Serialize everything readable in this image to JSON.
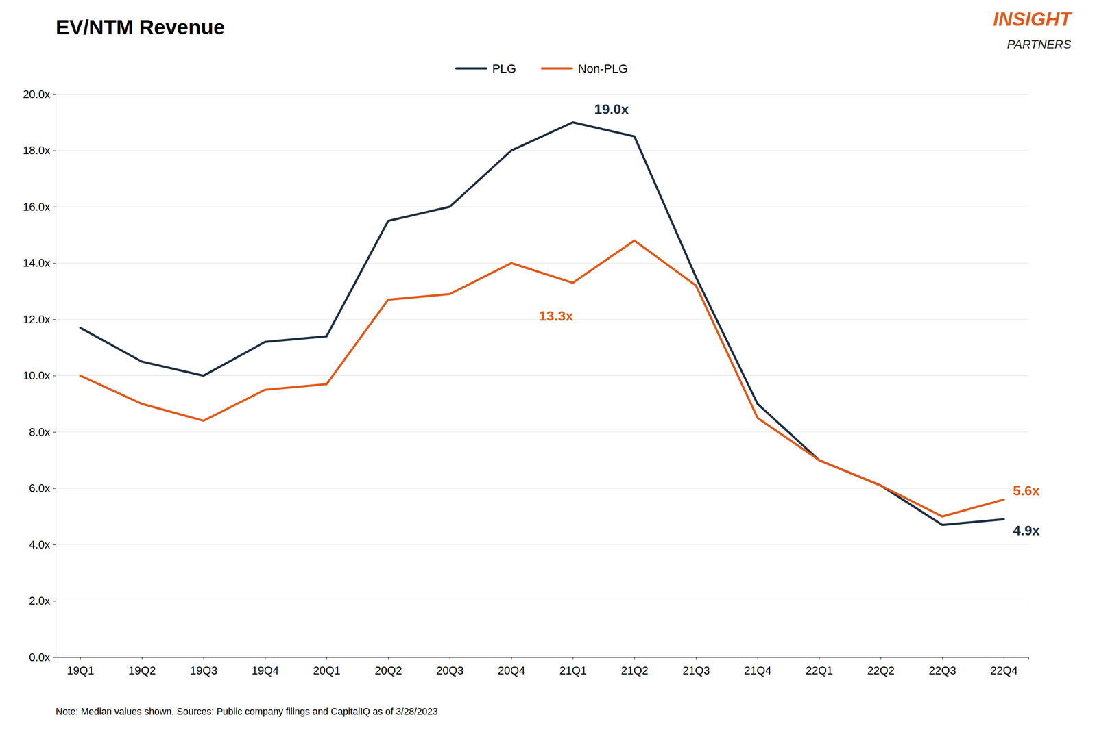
{
  "chart_data": {
    "type": "line",
    "title": "EV/NTM Revenue",
    "categories": [
      "19Q1",
      "19Q2",
      "19Q3",
      "19Q4",
      "20Q1",
      "20Q2",
      "20Q3",
      "20Q4",
      "21Q1",
      "21Q2",
      "21Q3",
      "21Q4",
      "22Q1",
      "22Q2",
      "22Q3",
      "22Q4"
    ],
    "series": [
      {
        "name": "PLG",
        "color": "#1c2e40",
        "values": [
          11.7,
          10.5,
          10.0,
          11.2,
          11.4,
          15.5,
          16.0,
          18.0,
          19.0,
          18.5,
          13.5,
          9.0,
          7.0,
          6.1,
          4.7,
          4.9
        ]
      },
      {
        "name": "Non-PLG",
        "color": "#e05a1a",
        "values": [
          10.0,
          9.0,
          8.4,
          9.5,
          9.7,
          12.7,
          12.9,
          14.0,
          13.3,
          14.8,
          13.2,
          8.5,
          7.0,
          6.1,
          5.0,
          5.6
        ]
      }
    ],
    "ylim": [
      0.0,
      20.0
    ],
    "yticks": [
      {
        "value": 0.0,
        "label": "0.0x"
      },
      {
        "value": 2.0,
        "label": "2.0x"
      },
      {
        "value": 4.0,
        "label": "4.0x"
      },
      {
        "value": 6.0,
        "label": "6.0x"
      },
      {
        "value": 8.0,
        "label": "8.0x"
      },
      {
        "value": 10.0,
        "label": "10.0x"
      },
      {
        "value": 12.0,
        "label": "12.0x"
      },
      {
        "value": 14.0,
        "label": "14.0x"
      },
      {
        "value": 16.0,
        "label": "16.0x"
      },
      {
        "value": 18.0,
        "label": "18.0x"
      },
      {
        "value": 20.0,
        "label": "20.0x"
      }
    ],
    "grid": true,
    "legend": "top",
    "annotations": [
      {
        "text": "19.0x",
        "series": "PLG",
        "category": "21Q1",
        "value": 19.0
      },
      {
        "text": "13.3x",
        "series": "Non-PLG",
        "category": "21Q1",
        "value": 13.3
      },
      {
        "text": "5.6x",
        "series": "Non-PLG",
        "category": "22Q4",
        "value": 5.6
      },
      {
        "text": "4.9x",
        "series": "PLG",
        "category": "22Q4",
        "value": 4.9
      }
    ],
    "footnote": "Note: Median values shown. Sources: Public company filings and CapitalIQ as of 3/28/2023",
    "logo": [
      {
        "text": "INSIGHT",
        "color": "#e05a1a"
      },
      {
        "text": "PARTNERS",
        "color": "#1a1a1a"
      }
    ]
  }
}
